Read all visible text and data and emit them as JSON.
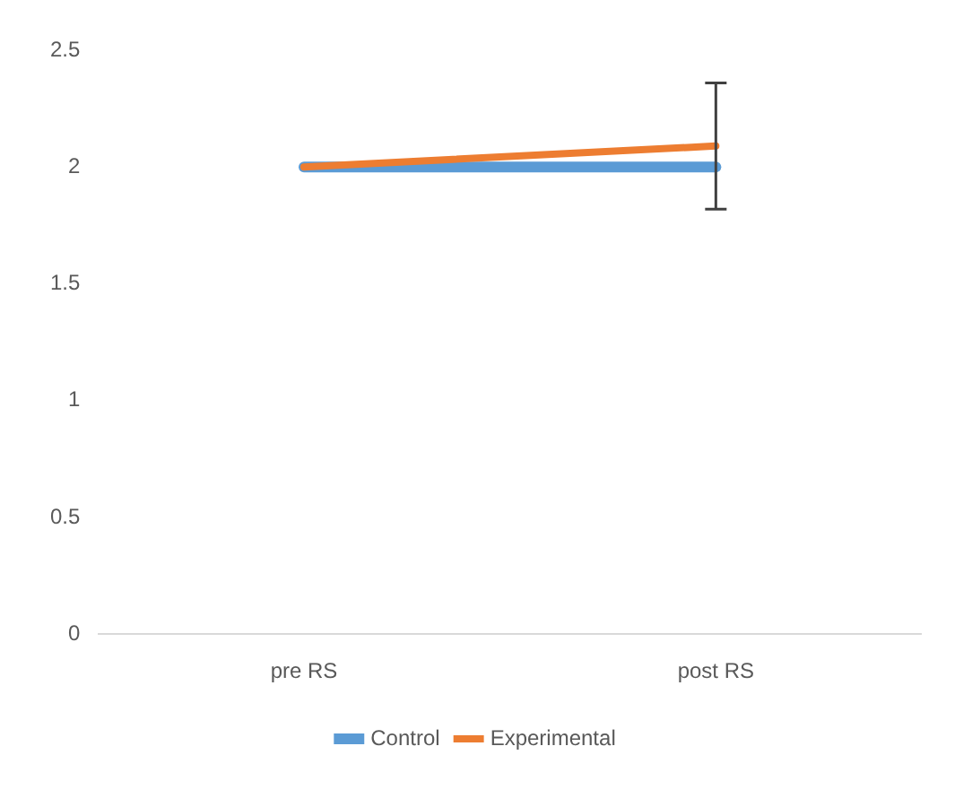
{
  "chart_data": {
    "type": "line",
    "categories": [
      "pre RS",
      "post RS"
    ],
    "series": [
      {
        "name": "Control",
        "color": "#5b9bd5",
        "values": [
          2,
          2
        ]
      },
      {
        "name": "Experimental",
        "color": "#ed7d31",
        "values": [
          2,
          2.09
        ],
        "errors": [
          null,
          0.27
        ]
      }
    ],
    "ylim": [
      0,
      2.5
    ],
    "yticks": [
      0,
      0.5,
      1,
      1.5,
      2,
      2.5
    ],
    "grid": false,
    "legend": "bottom",
    "marker": "none"
  }
}
